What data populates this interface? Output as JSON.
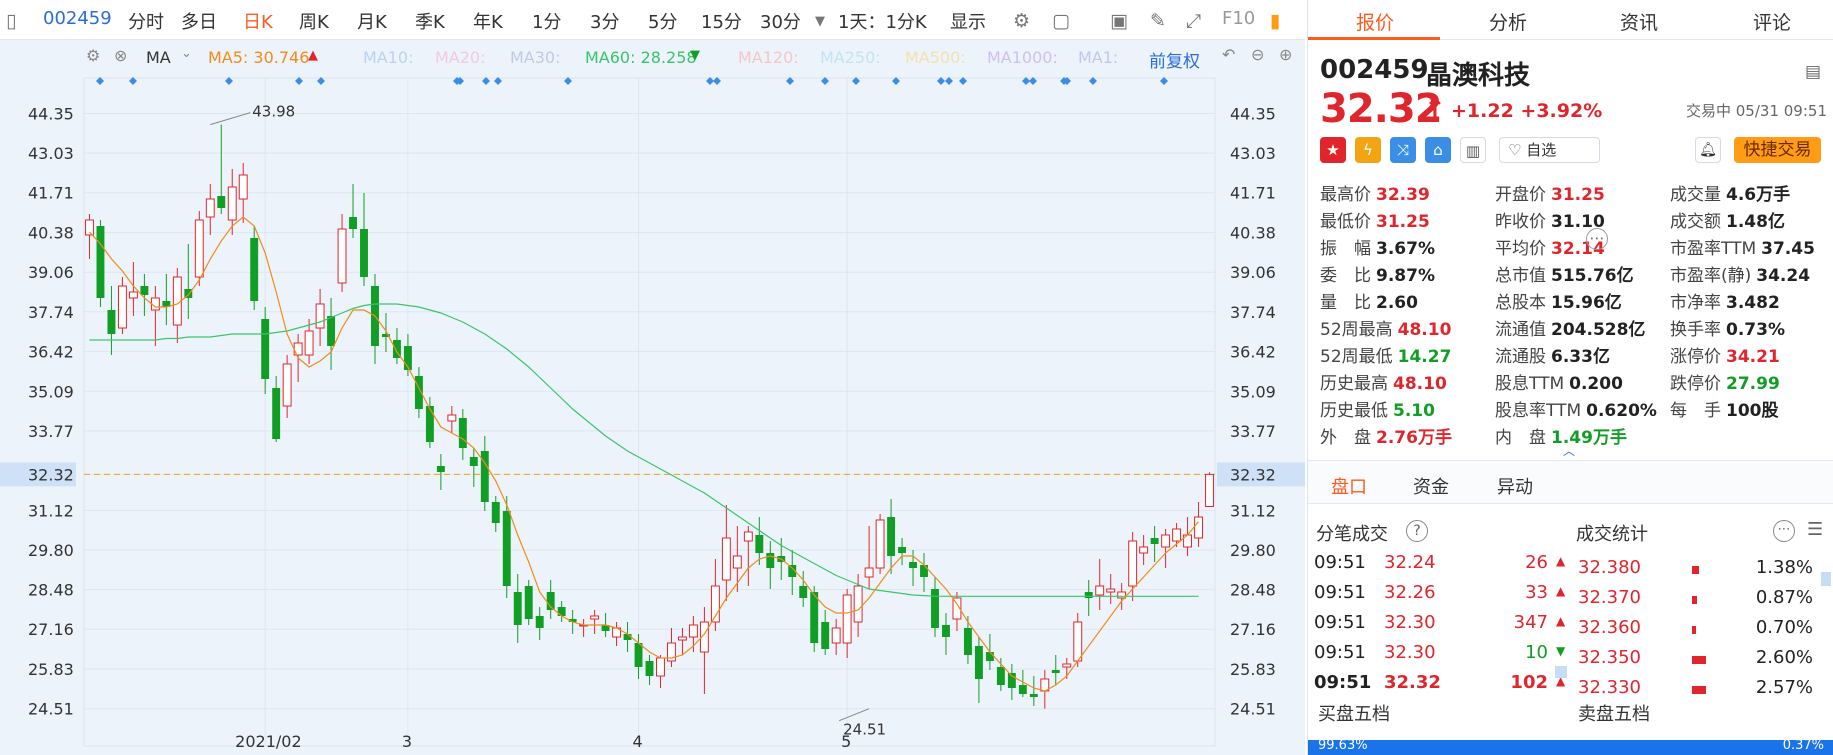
{
  "toolbar": {
    "code": "002459",
    "items": [
      "分时",
      "多日",
      "日K",
      "周K",
      "月K",
      "季K",
      "年K",
      "1分",
      "3分",
      "5分",
      "15分",
      "30分"
    ],
    "active": "日K",
    "period_select": "1天：1分K",
    "display": "显示",
    "f10": "F10"
  },
  "indicators": {
    "ma_label": "MA",
    "ma5": "MA5: 30.746",
    "ma10": "MA10:",
    "ma20": "MA20:",
    "ma30": "MA30:",
    "ma60": "MA60: 28.258",
    "ma120": "MA120:",
    "ma250": "MA250:",
    "ma500": "MA500:",
    "ma1000": "MA1000:",
    "ma1": "MA1:",
    "adjust": "前复权"
  },
  "colors": {
    "up": "#e0262c",
    "down": "#109e25",
    "ma5": "#f08c1a",
    "ma60": "#3cc46a",
    "accent": "#ff5a1f",
    "blue": "#2b6cdd"
  },
  "chart_data": {
    "type": "candlestick",
    "ylim": [
      23.8,
      45.2
    ],
    "y_ticks": [
      "44.35",
      "43.03",
      "41.71",
      "40.38",
      "39.06",
      "37.74",
      "36.42",
      "35.09",
      "33.77",
      "32.32",
      "31.12",
      "29.80",
      "28.48",
      "27.16",
      "25.83",
      "24.51"
    ],
    "x_labels": [
      {
        "label": "2021/02",
        "index": 16
      },
      {
        "label": "3",
        "index": 29
      },
      {
        "label": "4",
        "index": 50
      },
      {
        "label": "5",
        "index": 69
      }
    ],
    "current_price": 32.32,
    "annotations": [
      {
        "text": "43.98",
        "index": 11,
        "value": 43.98
      },
      {
        "text": "24.51",
        "index": 71,
        "value": 24.51
      }
    ],
    "candles": [
      [
        40.3,
        41.0,
        39.5,
        40.8
      ],
      [
        40.6,
        40.8,
        37.9,
        38.2
      ],
      [
        37.8,
        38.6,
        36.3,
        37.0
      ],
      [
        37.2,
        38.9,
        37.0,
        38.6
      ],
      [
        38.2,
        39.4,
        37.6,
        38.4
      ],
      [
        38.6,
        39.0,
        37.6,
        38.3
      ],
      [
        37.8,
        38.6,
        36.6,
        38.2
      ],
      [
        38.1,
        39.0,
        37.3,
        37.9
      ],
      [
        37.3,
        39.2,
        36.7,
        38.9
      ],
      [
        38.5,
        40.0,
        37.5,
        38.2
      ],
      [
        38.9,
        41.1,
        38.6,
        40.8
      ],
      [
        40.9,
        42.0,
        40.3,
        41.5
      ],
      [
        41.6,
        43.98,
        41.0,
        41.2
      ],
      [
        40.8,
        42.5,
        40.3,
        41.9
      ],
      [
        41.5,
        42.7,
        40.7,
        42.3
      ],
      [
        40.2,
        40.6,
        37.8,
        38.1
      ],
      [
        37.5,
        37.9,
        35.0,
        35.5
      ],
      [
        35.2,
        35.6,
        33.4,
        33.5
      ],
      [
        34.6,
        36.3,
        34.2,
        36.0
      ],
      [
        36.3,
        37.0,
        35.4,
        36.7
      ],
      [
        36.3,
        37.5,
        36.0,
        37.1
      ],
      [
        37.2,
        38.5,
        36.6,
        38.0
      ],
      [
        37.6,
        38.2,
        35.8,
        36.6
      ],
      [
        38.7,
        41.0,
        38.4,
        40.5
      ],
      [
        40.9,
        42.0,
        40.2,
        40.5
      ],
      [
        40.5,
        41.7,
        38.6,
        38.9
      ],
      [
        38.6,
        39.0,
        36.0,
        36.6
      ],
      [
        37.0,
        37.7,
        36.4,
        36.9
      ],
      [
        36.8,
        37.2,
        36.0,
        36.2
      ],
      [
        36.6,
        37.0,
        35.6,
        35.8
      ],
      [
        35.6,
        35.9,
        34.2,
        34.5
      ],
      [
        34.6,
        34.9,
        33.2,
        33.4
      ],
      [
        32.6,
        33.0,
        31.8,
        32.4
      ],
      [
        34.1,
        34.6,
        33.7,
        34.3
      ],
      [
        34.2,
        34.5,
        32.8,
        33.2
      ],
      [
        32.9,
        33.2,
        31.9,
        32.6
      ],
      [
        33.1,
        33.6,
        31.1,
        31.4
      ],
      [
        31.4,
        31.6,
        30.4,
        30.7
      ],
      [
        31.1,
        31.6,
        28.2,
        28.6
      ],
      [
        28.4,
        29.0,
        26.7,
        27.3
      ],
      [
        28.6,
        28.8,
        27.3,
        27.5
      ],
      [
        27.6,
        27.9,
        26.8,
        27.2
      ],
      [
        28.4,
        28.8,
        27.5,
        27.8
      ],
      [
        27.9,
        28.1,
        27.4,
        27.6
      ],
      [
        27.5,
        27.8,
        27.0,
        27.4
      ],
      [
        27.3,
        27.5,
        26.9,
        27.3
      ],
      [
        27.5,
        27.8,
        27.0,
        27.6
      ],
      [
        27.3,
        27.7,
        26.9,
        27.1
      ],
      [
        26.9,
        27.4,
        26.6,
        27.2
      ],
      [
        27.0,
        27.4,
        26.4,
        26.8
      ],
      [
        26.7,
        27.0,
        25.5,
        25.9
      ],
      [
        26.1,
        26.3,
        25.3,
        25.6
      ],
      [
        25.6,
        26.3,
        25.2,
        26.2
      ],
      [
        26.1,
        27.2,
        25.9,
        26.7
      ],
      [
        26.8,
        27.2,
        26.3,
        26.9
      ],
      [
        26.9,
        27.6,
        26.4,
        27.3
      ],
      [
        26.4,
        27.9,
        25.0,
        27.4
      ],
      [
        27.4,
        29.5,
        27.1,
        28.6
      ],
      [
        28.8,
        31.3,
        28.1,
        30.2
      ],
      [
        29.2,
        30.6,
        28.4,
        29.6
      ],
      [
        30.1,
        30.6,
        28.6,
        30.4
      ],
      [
        30.3,
        30.9,
        29.3,
        29.7
      ],
      [
        29.7,
        30.1,
        28.5,
        29.2
      ],
      [
        29.6,
        30.2,
        28.8,
        29.4
      ],
      [
        29.3,
        29.8,
        28.3,
        28.9
      ],
      [
        28.6,
        29.1,
        27.9,
        28.2
      ],
      [
        28.4,
        28.6,
        26.4,
        26.7
      ],
      [
        27.4,
        27.8,
        26.3,
        26.5
      ],
      [
        26.7,
        27.5,
        26.3,
        27.2
      ],
      [
        26.7,
        28.5,
        26.2,
        28.3
      ],
      [
        27.4,
        29.0,
        26.9,
        28.6
      ],
      [
        28.9,
        30.6,
        28.5,
        29.2
      ],
      [
        29.2,
        31.0,
        29.0,
        30.8
      ],
      [
        30.9,
        31.5,
        29.0,
        29.6
      ],
      [
        29.9,
        30.2,
        29.3,
        29.7
      ],
      [
        29.4,
        29.8,
        28.6,
        29.2
      ],
      [
        29.3,
        29.7,
        28.4,
        28.9
      ],
      [
        28.5,
        28.9,
        26.9,
        27.2
      ],
      [
        27.3,
        27.7,
        26.3,
        26.9
      ],
      [
        27.5,
        28.4,
        27.1,
        28.2
      ],
      [
        27.2,
        27.6,
        26.0,
        26.3
      ],
      [
        26.6,
        26.9,
        24.7,
        25.5
      ],
      [
        26.4,
        27.0,
        25.8,
        26.1
      ],
      [
        25.9,
        26.2,
        25.1,
        25.3
      ],
      [
        25.7,
        26.0,
        24.8,
        25.2
      ],
      [
        25.3,
        25.8,
        24.9,
        25.0
      ],
      [
        25.0,
        25.6,
        24.6,
        24.9
      ],
      [
        25.1,
        25.8,
        24.51,
        25.5
      ],
      [
        25.8,
        26.3,
        25.3,
        25.7
      ],
      [
        25.9,
        26.2,
        25.5,
        26.0
      ],
      [
        26.1,
        27.7,
        25.9,
        27.4
      ],
      [
        28.4,
        28.8,
        27.6,
        28.2
      ],
      [
        28.3,
        29.5,
        27.8,
        28.6
      ],
      [
        28.4,
        29.0,
        28.0,
        28.5
      ],
      [
        28.2,
        28.7,
        27.8,
        28.4
      ],
      [
        28.6,
        30.4,
        28.1,
        30.1
      ],
      [
        29.7,
        30.3,
        29.3,
        29.9
      ],
      [
        30.2,
        30.6,
        29.4,
        30.0
      ],
      [
        29.9,
        30.5,
        29.2,
        30.3
      ],
      [
        30.1,
        30.7,
        29.9,
        30.5
      ],
      [
        29.9,
        30.9,
        29.6,
        30.3
      ],
      [
        30.2,
        31.4,
        29.9,
        30.9
      ],
      [
        31.25,
        32.39,
        31.25,
        32.32
      ]
    ],
    "ma5": [
      40.4,
      40.0,
      39.5,
      39.1,
      38.6,
      38.2,
      37.9,
      37.9,
      38.0,
      38.3,
      38.8,
      39.5,
      40.1,
      40.6,
      40.9,
      40.6,
      39.7,
      38.4,
      37.0,
      36.2,
      35.9,
      36.1,
      36.4,
      37.2,
      37.8,
      37.8,
      37.6,
      37.1,
      36.4,
      35.9,
      35.2,
      34.5,
      33.9,
      33.7,
      33.5,
      33.2,
      32.7,
      32.1,
      31.3,
      30.3,
      29.4,
      28.4,
      27.9,
      27.6,
      27.4,
      27.3,
      27.3,
      27.3,
      27.2,
      27.0,
      26.7,
      26.4,
      26.2,
      26.2,
      26.3,
      26.6,
      27.0,
      27.6,
      28.2,
      28.7,
      29.2,
      29.5,
      29.6,
      29.5,
      29.2,
      28.8,
      28.3,
      27.9,
      27.7,
      27.7,
      27.8,
      28.2,
      28.7,
      29.2,
      29.6,
      29.6,
      29.3,
      28.9,
      28.5,
      28.0,
      27.4,
      26.9,
      26.4,
      26.0,
      25.6,
      25.4,
      25.2,
      25.1,
      25.3,
      25.6,
      26.1,
      26.6,
      27.1,
      27.6,
      28.1,
      28.5,
      28.9,
      29.3,
      29.7,
      30.0,
      30.3,
      30.746
    ],
    "ma60": [
      36.8,
      36.8,
      36.8,
      36.8,
      36.8,
      36.8,
      36.8,
      36.85,
      36.85,
      36.9,
      36.9,
      36.9,
      36.95,
      37.0,
      37.0,
      37.0,
      37.0,
      37.05,
      37.1,
      37.2,
      37.3,
      37.4,
      37.55,
      37.7,
      37.85,
      37.95,
      38.0,
      38.0,
      38.0,
      37.95,
      37.9,
      37.8,
      37.7,
      37.55,
      37.4,
      37.2,
      37.0,
      36.75,
      36.5,
      36.2,
      35.9,
      35.55,
      35.2,
      34.85,
      34.5,
      34.2,
      33.9,
      33.6,
      33.35,
      33.1,
      32.9,
      32.7,
      32.5,
      32.3,
      32.1,
      31.9,
      31.7,
      31.45,
      31.2,
      30.95,
      30.7,
      30.45,
      30.2,
      29.95,
      29.75,
      29.55,
      29.35,
      29.15,
      28.95,
      28.8,
      28.65,
      28.5,
      28.45,
      28.4,
      28.35,
      28.3,
      28.28,
      28.26,
      28.258,
      28.258,
      28.258,
      28.258,
      28.258,
      28.258,
      28.258,
      28.258,
      28.258,
      28.258,
      28.258,
      28.258,
      28.258,
      28.258,
      28.258,
      28.258,
      28.258,
      28.258,
      28.258,
      28.258,
      28.258,
      28.258,
      28.258,
      28.258
    ]
  },
  "stock": {
    "code": "002459",
    "name": "晶澳科技",
    "price": "32.32",
    "change": "+1.22 +3.92%",
    "status": "交易中 05/31 09:51",
    "zixuan": "自选",
    "quick_trade": "快捷交易"
  },
  "right_tabs": [
    "报价",
    "分析",
    "资讯",
    "评论"
  ],
  "fields": [
    {
      "label": "最高价",
      "value": "32.39",
      "color": "red"
    },
    {
      "label": "开盘价",
      "value": "31.25",
      "color": "red"
    },
    {
      "label": "成交量",
      "value": "4.6万手",
      "color": "dark"
    },
    {
      "label": "最低价",
      "value": "31.25",
      "color": "red"
    },
    {
      "label": "昨收价",
      "value": "31.10",
      "color": "dark"
    },
    {
      "label": "成交额",
      "value": "1.48亿",
      "color": "dark"
    },
    {
      "label": "振　幅",
      "value": "3.67%",
      "color": "dark"
    },
    {
      "label": "平均价",
      "value": "32.14",
      "color": "red"
    },
    {
      "label": "市盈率TTM",
      "value": "37.45",
      "color": "dark"
    },
    {
      "label": "委　比",
      "value": "9.87%",
      "color": "dark"
    },
    {
      "label": "总市值",
      "value": "515.76亿",
      "color": "dark"
    },
    {
      "label": "市盈率(静)",
      "value": "34.24",
      "color": "dark"
    },
    {
      "label": "量　比",
      "value": "2.60",
      "color": "dark"
    },
    {
      "label": "总股本",
      "value": "15.96亿",
      "color": "dark"
    },
    {
      "label": "市净率",
      "value": "3.482",
      "color": "dark"
    },
    {
      "label": "52周最高",
      "value": "48.10",
      "color": "red"
    },
    {
      "label": "流通值",
      "value": "204.528亿",
      "color": "dark"
    },
    {
      "label": "换手率",
      "value": "0.73%",
      "color": "dark"
    },
    {
      "label": "52周最低",
      "value": "14.27",
      "color": "green"
    },
    {
      "label": "流通股",
      "value": "6.33亿",
      "color": "dark"
    },
    {
      "label": "涨停价",
      "value": "34.21",
      "color": "red"
    },
    {
      "label": "历史最高",
      "value": "48.10",
      "color": "red"
    },
    {
      "label": "股息TTM",
      "value": "0.200",
      "color": "dark"
    },
    {
      "label": "跌停价",
      "value": "27.99",
      "color": "green"
    },
    {
      "label": "历史最低",
      "value": "5.10",
      "color": "green"
    },
    {
      "label": "股息率TTM",
      "value": "0.620%",
      "color": "dark"
    },
    {
      "label": "每　手",
      "value": "100股",
      "color": "dark"
    },
    {
      "label": "外　盘",
      "value": "2.76万手",
      "color": "red"
    },
    {
      "label": "内　盘",
      "value": "1.49万手",
      "color": "green"
    }
  ],
  "sub_tabs": [
    "盘口",
    "资金",
    "异动"
  ],
  "ticks_title": "分笔成交",
  "stats_title": "成交统计",
  "ticks": [
    {
      "time": "09:51",
      "price": "32.24",
      "vol": "26",
      "dir": "up"
    },
    {
      "time": "09:51",
      "price": "32.26",
      "vol": "33",
      "dir": "up"
    },
    {
      "time": "09:51",
      "price": "32.30",
      "vol": "347",
      "dir": "up"
    },
    {
      "time": "09:51",
      "price": "32.30",
      "vol": "10",
      "dir": "down"
    },
    {
      "time": "09:51",
      "price": "32.32",
      "vol": "102",
      "dir": "up"
    }
  ],
  "stats": [
    {
      "price": "32.380",
      "pct": "1.38%",
      "pct_value": 1.38
    },
    {
      "price": "32.370",
      "pct": "0.87%",
      "pct_value": 0.87
    },
    {
      "price": "32.360",
      "pct": "0.70%",
      "pct_value": 0.7
    },
    {
      "price": "32.350",
      "pct": "2.60%",
      "pct_value": 2.6
    },
    {
      "price": "32.330",
      "pct": "2.57%",
      "pct_value": 2.57
    }
  ],
  "book": {
    "buy": "买盘五档",
    "sell": "卖盘五档",
    "buy_pct": "99.63%",
    "sell_pct": "0.37%"
  }
}
